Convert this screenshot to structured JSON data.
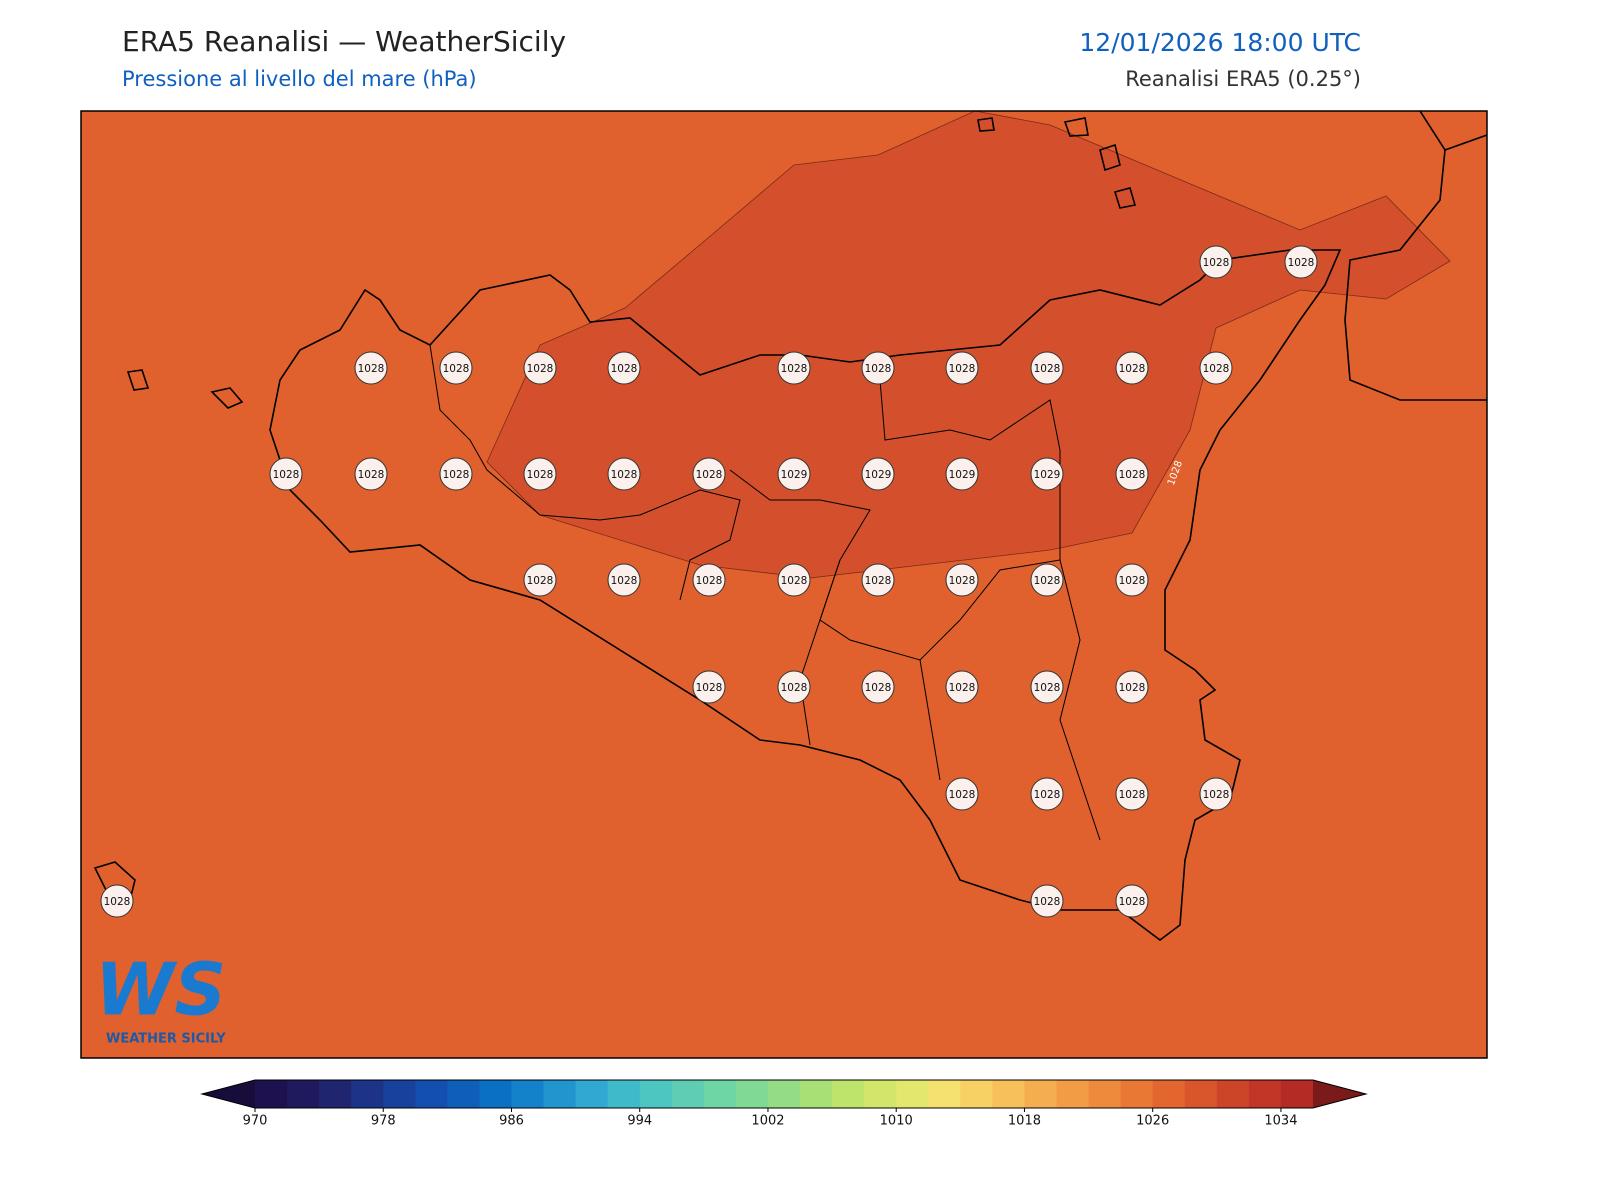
{
  "header": {
    "title": "ERA5 Reanalisi — WeatherSicily",
    "subtitle": "Pressione al livello del mare (hPa)",
    "datetime": "12/01/2026 18:00 UTC",
    "source": "Reanalisi ERA5 (0.25°)"
  },
  "map": {
    "background_color": "#e0602e",
    "region_color": "#d4502d",
    "contour_label": "1028",
    "stations": [
      1028,
      1028,
      1028,
      1028,
      1028,
      1028,
      1028,
      1028,
      1028,
      1028,
      1028,
      1028,
      1028,
      1028,
      1028,
      1028,
      1028,
      1028,
      1029,
      1029,
      1029,
      1029,
      1028,
      1028,
      1028,
      1028,
      1028,
      1028,
      1028,
      1028,
      1028,
      1028,
      1028,
      1028,
      1028,
      1028,
      1028,
      1028,
      1028,
      1028,
      1028,
      1028,
      1028,
      1028
    ]
  },
  "logo": {
    "mark": "WS",
    "text": "Weather Sicily"
  },
  "colorbar": {
    "ticks": [
      970,
      978,
      986,
      994,
      1002,
      1010,
      1018,
      1026,
      1034
    ],
    "range": [
      970,
      1036
    ],
    "step": 2,
    "colors": [
      "#1e1150",
      "#1f1a5e",
      "#202570",
      "#1c3388",
      "#17419c",
      "#124fae",
      "#0f5fb8",
      "#0a70c4",
      "#1482ca",
      "#2295cf",
      "#31a8d2",
      "#3fbacb",
      "#4dc5c1",
      "#5ecdb3",
      "#6ed5a5",
      "#80d995",
      "#94dd85",
      "#a8e075",
      "#bfe46b",
      "#d3e66a",
      "#e4e76d",
      "#f5e170",
      "#f8d165",
      "#f7c05a",
      "#f5ae4f",
      "#f29c45",
      "#ee8a3c",
      "#e97834",
      "#e2662e",
      "#d9552b",
      "#cd4528",
      "#c13626",
      "#b42a24"
    ],
    "extend_low": "#170c3a",
    "extend_high": "#7a1a1a"
  }
}
